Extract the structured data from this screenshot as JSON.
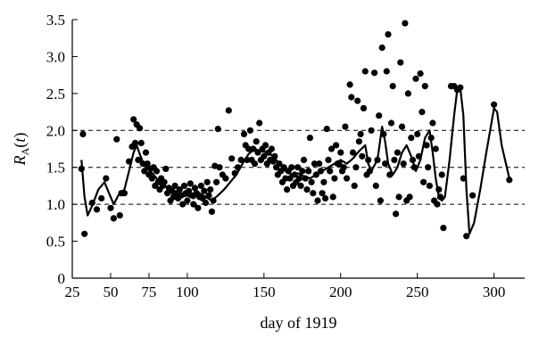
{
  "chart_data": {
    "type": "scatter",
    "xlabel": "day of 1919",
    "ylabel": {
      "symbol": "R",
      "subscript": "A",
      "argument": "(t)"
    },
    "xlim": [
      25,
      320
    ],
    "ylim": [
      0,
      3.5
    ],
    "x_ticks": [
      25,
      50,
      75,
      100,
      150,
      200,
      250,
      300
    ],
    "y_ticks": [
      0,
      0.5,
      1.0,
      1.5,
      2.0,
      2.5,
      3.0,
      3.5
    ],
    "x_tick_labels": [
      "25",
      "50",
      "75",
      "100",
      "150",
      "200",
      "250",
      "300"
    ],
    "y_tick_labels": [
      "0",
      "0.5",
      "1.0",
      "1.5",
      "2.0",
      "2.5",
      "3.0",
      "3.5"
    ],
    "reference_lines": [
      1.0,
      1.5,
      2.0
    ],
    "reference_line_style": "dashed",
    "grid": false,
    "colors": {
      "points": "#000000",
      "line": "#000000",
      "axes": "#000000"
    },
    "series": [
      {
        "kind": "points",
        "values": [
          [
            31,
            1.48
          ],
          [
            32,
            1.95
          ],
          [
            33,
            0.6
          ],
          [
            38,
            1.02
          ],
          [
            41,
            0.93
          ],
          [
            44,
            1.08
          ],
          [
            47,
            1.35
          ],
          [
            50,
            0.95
          ],
          [
            52,
            0.81
          ],
          [
            54,
            1.88
          ],
          [
            56,
            0.85
          ],
          [
            57,
            1.15
          ],
          [
            59,
            1.15
          ],
          [
            62,
            1.58
          ],
          [
            64,
            1.78
          ],
          [
            65,
            2.15
          ],
          [
            66,
            1.83
          ],
          [
            67,
            2.08
          ],
          [
            68,
            1.6
          ],
          [
            69,
            2.03
          ],
          [
            70,
            1.83
          ],
          [
            71,
            1.55
          ],
          [
            72,
            1.45
          ],
          [
            73,
            1.7
          ],
          [
            74,
            1.55
          ],
          [
            75,
            1.4
          ],
          [
            76,
            1.48
          ],
          [
            77,
            1.35
          ],
          [
            78,
            1.5
          ],
          [
            79,
            1.25
          ],
          [
            80,
            1.45
          ],
          [
            81,
            1.3
          ],
          [
            82,
            1.2
          ],
          [
            83,
            1.35
          ],
          [
            84,
            1.25
          ],
          [
            85,
            1.3
          ],
          [
            86,
            1.48
          ],
          [
            87,
            1.15
          ],
          [
            88,
            1.22
          ],
          [
            89,
            1.05
          ],
          [
            90,
            1.18
          ],
          [
            91,
            1.1
          ],
          [
            92,
            1.25
          ],
          [
            93,
            1.15
          ],
          [
            94,
            1.08
          ],
          [
            95,
            1.2
          ],
          [
            96,
            1.12
          ],
          [
            97,
            1.0
          ],
          [
            98,
            1.25
          ],
          [
            99,
            1.15
          ],
          [
            100,
            1.05
          ],
          [
            101,
            1.18
          ],
          [
            102,
            1.28
          ],
          [
            103,
            1.12
          ],
          [
            104,
            1.0
          ],
          [
            105,
            1.22
          ],
          [
            106,
            1.15
          ],
          [
            107,
            0.95
          ],
          [
            108,
            1.1
          ],
          [
            109,
            1.25
          ],
          [
            110,
            1.08
          ],
          [
            111,
            1.18
          ],
          [
            112,
            1.02
          ],
          [
            113,
            1.3
          ],
          [
            114,
            1.12
          ],
          [
            115,
            1.2
          ],
          [
            116,
            0.9
          ],
          [
            117,
            1.05
          ],
          [
            118,
            1.52
          ],
          [
            119,
            1.3
          ],
          [
            120,
            2.02
          ],
          [
            121,
            1.5
          ],
          [
            123,
            1.4
          ],
          [
            125,
            1.35
          ],
          [
            127,
            2.27
          ],
          [
            129,
            1.62
          ],
          [
            131,
            1.42
          ],
          [
            133,
            1.5
          ],
          [
            135,
            1.6
          ],
          [
            137,
            1.95
          ],
          [
            138,
            1.8
          ],
          [
            139,
            1.6
          ],
          [
            140,
            1.75
          ],
          [
            141,
            2.0
          ],
          [
            142,
            1.6
          ],
          [
            143,
            1.75
          ],
          [
            144,
            1.55
          ],
          [
            145,
            1.85
          ],
          [
            146,
            1.7
          ],
          [
            147,
            2.1
          ],
          [
            148,
            1.6
          ],
          [
            149,
            1.75
          ],
          [
            150,
            1.65
          ],
          [
            151,
            1.8
          ],
          [
            152,
            1.55
          ],
          [
            153,
            1.7
          ],
          [
            154,
            1.6
          ],
          [
            155,
            1.75
          ],
          [
            156,
            1.58
          ],
          [
            157,
            1.65
          ],
          [
            158,
            1.5
          ],
          [
            159,
            1.4
          ],
          [
            160,
            1.55
          ],
          [
            161,
            1.45
          ],
          [
            162,
            1.3
          ],
          [
            163,
            1.5
          ],
          [
            164,
            1.35
          ],
          [
            165,
            1.2
          ],
          [
            166,
            1.45
          ],
          [
            167,
            1.35
          ],
          [
            168,
            1.5
          ],
          [
            169,
            1.25
          ],
          [
            170,
            1.4
          ],
          [
            171,
            1.3
          ],
          [
            172,
            1.5
          ],
          [
            173,
            1.35
          ],
          [
            174,
            1.25
          ],
          [
            175,
            1.45
          ],
          [
            176,
            1.6
          ],
          [
            177,
            1.35
          ],
          [
            178,
            1.2
          ],
          [
            179,
            1.45
          ],
          [
            180,
            1.9
          ],
          [
            181,
            1.3
          ],
          [
            182,
            1.15
          ],
          [
            183,
            1.55
          ],
          [
            184,
            1.4
          ],
          [
            185,
            1.05
          ],
          [
            186,
            1.55
          ],
          [
            187,
            1.45
          ],
          [
            188,
            1.15
          ],
          [
            189,
            1.3
          ],
          [
            190,
            1.08
          ],
          [
            191,
            2.02
          ],
          [
            192,
            1.6
          ],
          [
            193,
            1.45
          ],
          [
            194,
            1.75
          ],
          [
            195,
            1.1
          ],
          [
            196,
            1.35
          ],
          [
            197,
            1.8
          ],
          [
            198,
            1.55
          ],
          [
            199,
            1.55
          ],
          [
            200,
            1.7
          ],
          [
            201,
            1.45
          ],
          [
            202,
            1.5
          ],
          [
            203,
            2.05
          ],
          [
            204,
            1.35
          ],
          [
            206,
            2.62
          ],
          [
            207,
            2.45
          ],
          [
            208,
            1.7
          ],
          [
            209,
            1.25
          ],
          [
            210,
            1.5
          ],
          [
            211,
            2.4
          ],
          [
            212,
            1.85
          ],
          [
            213,
            1.95
          ],
          [
            214,
            1.65
          ],
          [
            215,
            2.3
          ],
          [
            216,
            2.8
          ],
          [
            217,
            1.4
          ],
          [
            218,
            1.6
          ],
          [
            219,
            1.45
          ],
          [
            220,
            2.0
          ],
          [
            222,
            2.78
          ],
          [
            223,
            1.25
          ],
          [
            224,
            1.6
          ],
          [
            225,
            2.2
          ],
          [
            226,
            1.05
          ],
          [
            227,
            3.12
          ],
          [
            228,
            1.95
          ],
          [
            229,
            1.55
          ],
          [
            230,
            2.8
          ],
          [
            231,
            3.3
          ],
          [
            232,
            1.4
          ],
          [
            233,
            2.1
          ],
          [
            234,
            2.6
          ],
          [
            235,
            1.6
          ],
          [
            236,
            0.87
          ],
          [
            237,
            1.7
          ],
          [
            238,
            1.1
          ],
          [
            239,
            2.92
          ],
          [
            240,
            2.05
          ],
          [
            241,
            1.55
          ],
          [
            242,
            3.45
          ],
          [
            243,
            1.05
          ],
          [
            244,
            2.5
          ],
          [
            245,
            1.1
          ],
          [
            246,
            1.9
          ],
          [
            247,
            1.6
          ],
          [
            248,
            1.5
          ],
          [
            249,
            2.7
          ],
          [
            250,
            1.95
          ],
          [
            251,
            1.65
          ],
          [
            252,
            2.77
          ],
          [
            253,
            2.25
          ],
          [
            254,
            1.3
          ],
          [
            255,
            2.6
          ],
          [
            256,
            1.8
          ],
          [
            257,
            1.5
          ],
          [
            258,
            1.25
          ],
          [
            259,
            1.9
          ],
          [
            260,
            2.1
          ],
          [
            261,
            1.05
          ],
          [
            262,
            1.75
          ],
          [
            263,
            1.0
          ],
          [
            264,
            1.2
          ],
          [
            265,
            1.1
          ],
          [
            266,
            1.4
          ],
          [
            267,
            0.68
          ],
          [
            272,
            2.6
          ],
          [
            274,
            2.6
          ],
          [
            276,
            2.55
          ],
          [
            278,
            2.58
          ],
          [
            280,
            1.35
          ],
          [
            282,
            0.57
          ],
          [
            286,
            1.12
          ],
          [
            300,
            2.35
          ],
          [
            310,
            1.33
          ]
        ]
      },
      {
        "kind": "smoothed-line",
        "values": [
          [
            31,
            1.6
          ],
          [
            33,
            1.1
          ],
          [
            35,
            0.85
          ],
          [
            38,
            0.98
          ],
          [
            42,
            1.2
          ],
          [
            46,
            1.3
          ],
          [
            49,
            1.15
          ],
          [
            52,
            1.0
          ],
          [
            55,
            1.12
          ],
          [
            59,
            1.2
          ],
          [
            62,
            1.45
          ],
          [
            65,
            1.7
          ],
          [
            67,
            1.8
          ],
          [
            69,
            1.68
          ],
          [
            72,
            1.52
          ],
          [
            76,
            1.45
          ],
          [
            80,
            1.35
          ],
          [
            84,
            1.28
          ],
          [
            88,
            1.2
          ],
          [
            92,
            1.15
          ],
          [
            96,
            1.1
          ],
          [
            100,
            1.12
          ],
          [
            104,
            1.08
          ],
          [
            108,
            1.15
          ],
          [
            112,
            1.1
          ],
          [
            116,
            1.05
          ],
          [
            120,
            1.12
          ],
          [
            124,
            1.2
          ],
          [
            128,
            1.3
          ],
          [
            132,
            1.4
          ],
          [
            136,
            1.55
          ],
          [
            140,
            1.68
          ],
          [
            144,
            1.75
          ],
          [
            148,
            1.72
          ],
          [
            152,
            1.7
          ],
          [
            156,
            1.65
          ],
          [
            160,
            1.55
          ],
          [
            164,
            1.45
          ],
          [
            168,
            1.4
          ],
          [
            172,
            1.42
          ],
          [
            176,
            1.38
          ],
          [
            180,
            1.35
          ],
          [
            184,
            1.4
          ],
          [
            188,
            1.45
          ],
          [
            192,
            1.5
          ],
          [
            196,
            1.55
          ],
          [
            200,
            1.6
          ],
          [
            204,
            1.55
          ],
          [
            208,
            1.62
          ],
          [
            212,
            1.72
          ],
          [
            216,
            1.8
          ],
          [
            218,
            1.55
          ],
          [
            220,
            1.45
          ],
          [
            224,
            1.6
          ],
          [
            227,
            2.05
          ],
          [
            229,
            1.85
          ],
          [
            231,
            1.55
          ],
          [
            234,
            1.4
          ],
          [
            237,
            1.5
          ],
          [
            240,
            1.7
          ],
          [
            243,
            1.8
          ],
          [
            246,
            1.65
          ],
          [
            249,
            1.45
          ],
          [
            252,
            1.6
          ],
          [
            255,
            1.9
          ],
          [
            258,
            2.0
          ],
          [
            260,
            1.7
          ],
          [
            262,
            1.35
          ],
          [
            264,
            1.1
          ],
          [
            266,
            1.05
          ],
          [
            268,
            1.1
          ],
          [
            271,
            1.6
          ],
          [
            274,
            2.2
          ],
          [
            276,
            2.55
          ],
          [
            278,
            2.58
          ],
          [
            280,
            2.2
          ],
          [
            282,
            1.2
          ],
          [
            284,
            0.6
          ],
          [
            287,
            0.75
          ],
          [
            291,
            1.2
          ],
          [
            295,
            1.7
          ],
          [
            300,
            2.3
          ],
          [
            302,
            2.25
          ],
          [
            305,
            1.8
          ],
          [
            310,
            1.35
          ]
        ]
      }
    ]
  }
}
